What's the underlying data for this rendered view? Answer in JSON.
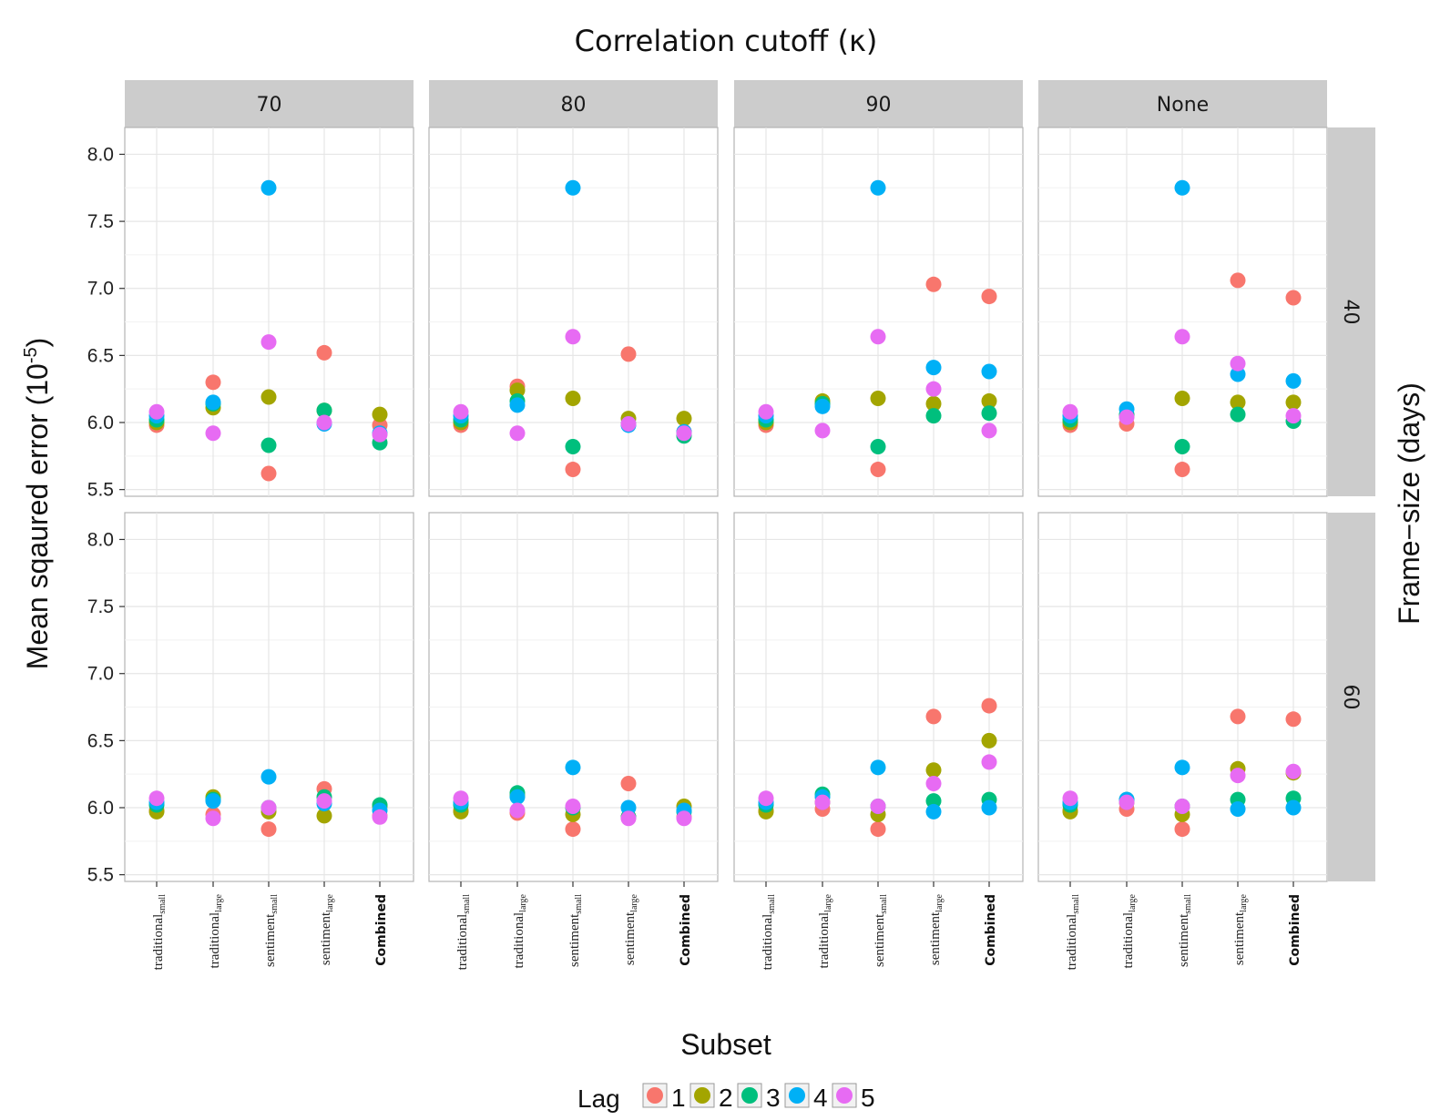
{
  "chart_data": {
    "type": "scatter",
    "title": "Correlation cutoff (κ)",
    "xlabel": "Subset",
    "ylabel_main": "Mean sqaured error (10",
    "ylabel_exp": "-5",
    "ylabel_close": ")",
    "right_label": "Frame−size (days)",
    "facet_cols": [
      "70",
      "80",
      "90",
      "None"
    ],
    "facet_rows": [
      "40",
      "60"
    ],
    "categories": [
      {
        "base": "traditional",
        "sub": "small",
        "bold": false
      },
      {
        "base": "traditional",
        "sub": "large",
        "bold": false
      },
      {
        "base": "sentiment",
        "sub": "small",
        "bold": false
      },
      {
        "base": "sentiment",
        "sub": "large",
        "bold": false
      },
      {
        "base": "Combined",
        "sub": "",
        "bold": true
      }
    ],
    "yticks": [
      "8.0",
      "7.5",
      "7.0",
      "6.5",
      "6.0",
      "5.5"
    ],
    "ylim": [
      5.45,
      8.2
    ],
    "grid": true,
    "legend": {
      "title": "Lag",
      "position": "bottom",
      "entries": [
        {
          "label": "1",
          "color": "#F8766D"
        },
        {
          "label": "2",
          "color": "#A3A500"
        },
        {
          "label": "3",
          "color": "#00BF7D"
        },
        {
          "label": "4",
          "color": "#00B0F6"
        },
        {
          "label": "5",
          "color": "#E76BF3"
        }
      ]
    },
    "series_order": [
      "1",
      "2",
      "3",
      "4",
      "5"
    ],
    "panels": [
      {
        "row": 0,
        "col": 0,
        "values": [
          [
            5.98,
            6.3,
            5.62,
            6.52,
            5.98
          ],
          [
            6.0,
            6.11,
            6.19,
            6.09,
            6.06
          ],
          [
            6.02,
            6.14,
            5.83,
            6.09,
            5.85
          ],
          [
            6.05,
            6.15,
            7.75,
            5.99,
            5.92
          ],
          [
            6.08,
            5.92,
            6.6,
            6.0,
            5.91
          ]
        ]
      },
      {
        "row": 0,
        "col": 1,
        "values": [
          [
            5.98,
            6.27,
            5.65,
            6.51,
            5.93
          ],
          [
            6.0,
            6.24,
            6.18,
            6.03,
            6.03
          ],
          [
            6.02,
            6.16,
            5.82,
            5.99,
            5.9
          ],
          [
            6.05,
            6.13,
            7.75,
            5.98,
            5.93
          ],
          [
            6.08,
            5.92,
            6.64,
            5.99,
            5.92
          ]
        ]
      },
      {
        "row": 0,
        "col": 2,
        "values": [
          [
            5.98,
            6.14,
            5.65,
            7.03,
            6.94
          ],
          [
            6.0,
            6.16,
            6.18,
            6.14,
            6.16
          ],
          [
            6.02,
            6.14,
            5.82,
            6.05,
            6.07
          ],
          [
            6.05,
            6.12,
            7.75,
            6.41,
            6.38
          ],
          [
            6.08,
            5.94,
            6.64,
            6.25,
            5.94
          ]
        ]
      },
      {
        "row": 0,
        "col": 3,
        "values": [
          [
            5.98,
            5.99,
            5.65,
            7.06,
            6.93
          ],
          [
            6.0,
            6.05,
            6.18,
            6.15,
            6.15
          ],
          [
            6.02,
            6.06,
            5.82,
            6.06,
            6.01
          ],
          [
            6.05,
            6.1,
            7.75,
            6.36,
            6.31
          ],
          [
            6.08,
            6.04,
            6.64,
            6.44,
            6.05
          ]
        ]
      },
      {
        "row": 1,
        "col": 0,
        "values": [
          [
            5.98,
            5.95,
            5.84,
            6.14,
            5.94
          ],
          [
            5.97,
            6.08,
            5.97,
            5.94,
            6.01
          ],
          [
            6.02,
            6.06,
            6.0,
            6.08,
            6.02
          ],
          [
            6.04,
            6.05,
            6.23,
            6.03,
            5.98
          ],
          [
            6.07,
            5.92,
            6.0,
            6.05,
            5.93
          ]
        ]
      },
      {
        "row": 1,
        "col": 1,
        "values": [
          [
            5.98,
            5.96,
            5.84,
            6.18,
            5.93
          ],
          [
            5.97,
            6.09,
            5.95,
            5.93,
            6.01
          ],
          [
            6.02,
            6.11,
            6.0,
            5.93,
            5.97
          ],
          [
            6.04,
            6.08,
            6.3,
            6.0,
            5.98
          ],
          [
            6.07,
            5.98,
            6.01,
            5.92,
            5.92
          ]
        ]
      },
      {
        "row": 1,
        "col": 2,
        "values": [
          [
            5.98,
            5.99,
            5.84,
            6.68,
            6.76
          ],
          [
            5.97,
            6.04,
            5.95,
            6.28,
            6.5
          ],
          [
            6.02,
            6.1,
            6.01,
            6.05,
            6.06
          ],
          [
            6.04,
            6.08,
            6.3,
            5.97,
            6.0
          ],
          [
            6.07,
            6.04,
            6.01,
            6.18,
            6.34
          ]
        ]
      },
      {
        "row": 1,
        "col": 3,
        "values": [
          [
            5.98,
            5.99,
            5.84,
            6.68,
            6.66
          ],
          [
            5.97,
            6.04,
            5.95,
            6.29,
            6.26
          ],
          [
            6.02,
            6.06,
            6.01,
            6.06,
            6.07
          ],
          [
            6.04,
            6.06,
            6.3,
            5.99,
            6.0
          ],
          [
            6.07,
            6.04,
            6.01,
            6.24,
            6.27
          ]
        ]
      }
    ]
  }
}
